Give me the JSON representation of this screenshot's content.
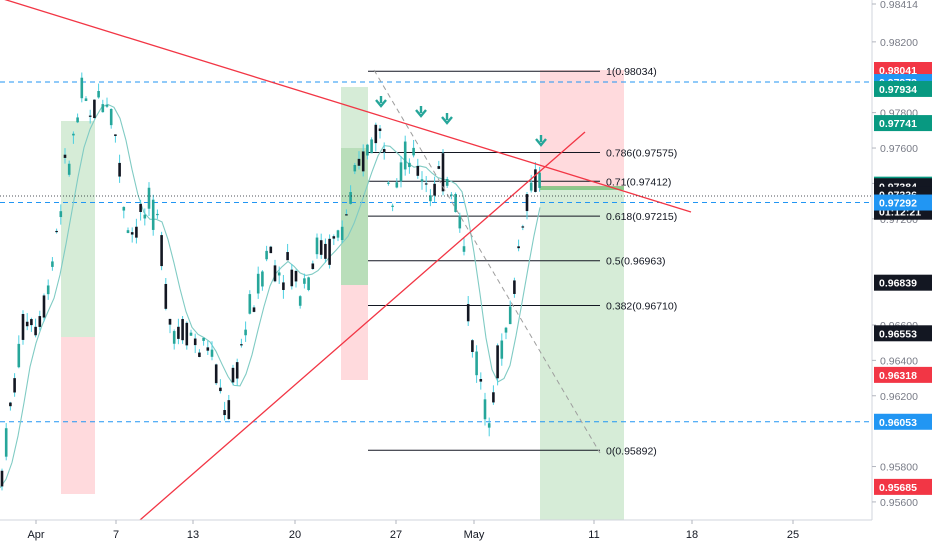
{
  "chart_data": {
    "type": "candlestick",
    "symbol": "",
    "x_axis": {
      "tick_labels": [
        "Apr",
        "7",
        "13",
        "20",
        "27",
        "May",
        "11",
        "18",
        "25"
      ]
    },
    "y_axis": {
      "range": [
        0.9555,
        0.9843
      ],
      "tick_labels": [
        "0.98414",
        "0.98200",
        "0.97800",
        "0.97600",
        "0.97400",
        "0.97200",
        "0.96600",
        "0.96400",
        "0.96200",
        "0.95800",
        "0.95600"
      ],
      "tick_values": [
        0.98414,
        0.982,
        0.978,
        0.976,
        0.974,
        0.972,
        0.966,
        0.964,
        0.962,
        0.958,
        0.956
      ],
      "price_tags": [
        {
          "label": "0.98041",
          "value": 0.98041,
          "color": "#f23645"
        },
        {
          "label": "0.97973",
          "value": 0.97973,
          "color": "#2196f3"
        },
        {
          "label": "0.97934",
          "value": 0.97934,
          "color": "#089981"
        },
        {
          "label": "0.97741",
          "value": 0.97741,
          "color": "#089981"
        },
        {
          "label": "0.97393",
          "value": 0.97393,
          "color": "#089981"
        },
        {
          "label": "0.97384",
          "value": 0.97384,
          "color": "#131722"
        },
        {
          "label": "0.97336",
          "value": 0.97336,
          "color": "#131722"
        },
        {
          "label": "01:12:21",
          "value": 0.9724,
          "color": "#131722"
        },
        {
          "label": "0.97292",
          "value": 0.97292,
          "color": "#2196f3"
        },
        {
          "label": "0.96839",
          "value": 0.96839,
          "color": "#131722"
        },
        {
          "label": "0.96553",
          "value": 0.96553,
          "color": "#131722"
        },
        {
          "label": "0.96318",
          "value": 0.96318,
          "color": "#f23645"
        },
        {
          "label": "0.96053",
          "value": 0.96053,
          "color": "#2196f3"
        },
        {
          "label": "0.95685",
          "value": 0.95685,
          "color": "#f23645"
        }
      ]
    },
    "fibonacci": {
      "levels": [
        {
          "label": "1(0.98034)",
          "value": 0.98034
        },
        {
          "label": "0.786(0.97575)",
          "value": 0.97575
        },
        {
          "label": "0.71(0.97412)",
          "value": 0.97412
        },
        {
          "label": "0.618(0.97215)",
          "value": 0.97215
        },
        {
          "label": "0.5(0.96963)",
          "value": 0.96963
        },
        {
          "label": "0.382(0.96710)",
          "value": 0.9671
        },
        {
          "label": "0(0.95892)",
          "value": 0.95892
        }
      ]
    },
    "horizontal_lines": [
      0.97973,
      0.97292,
      0.96053
    ],
    "current_price": 0.97384,
    "grid": false,
    "colors": {
      "up": "#26a69a",
      "down": "#131722",
      "wick": "#4dd0e1",
      "trendline": "#f23645",
      "hline": "#2196f3",
      "target_zone": "#c8e6c9",
      "stop_zone": "#ffcdd2",
      "arrows": "#26a69a"
    }
  }
}
